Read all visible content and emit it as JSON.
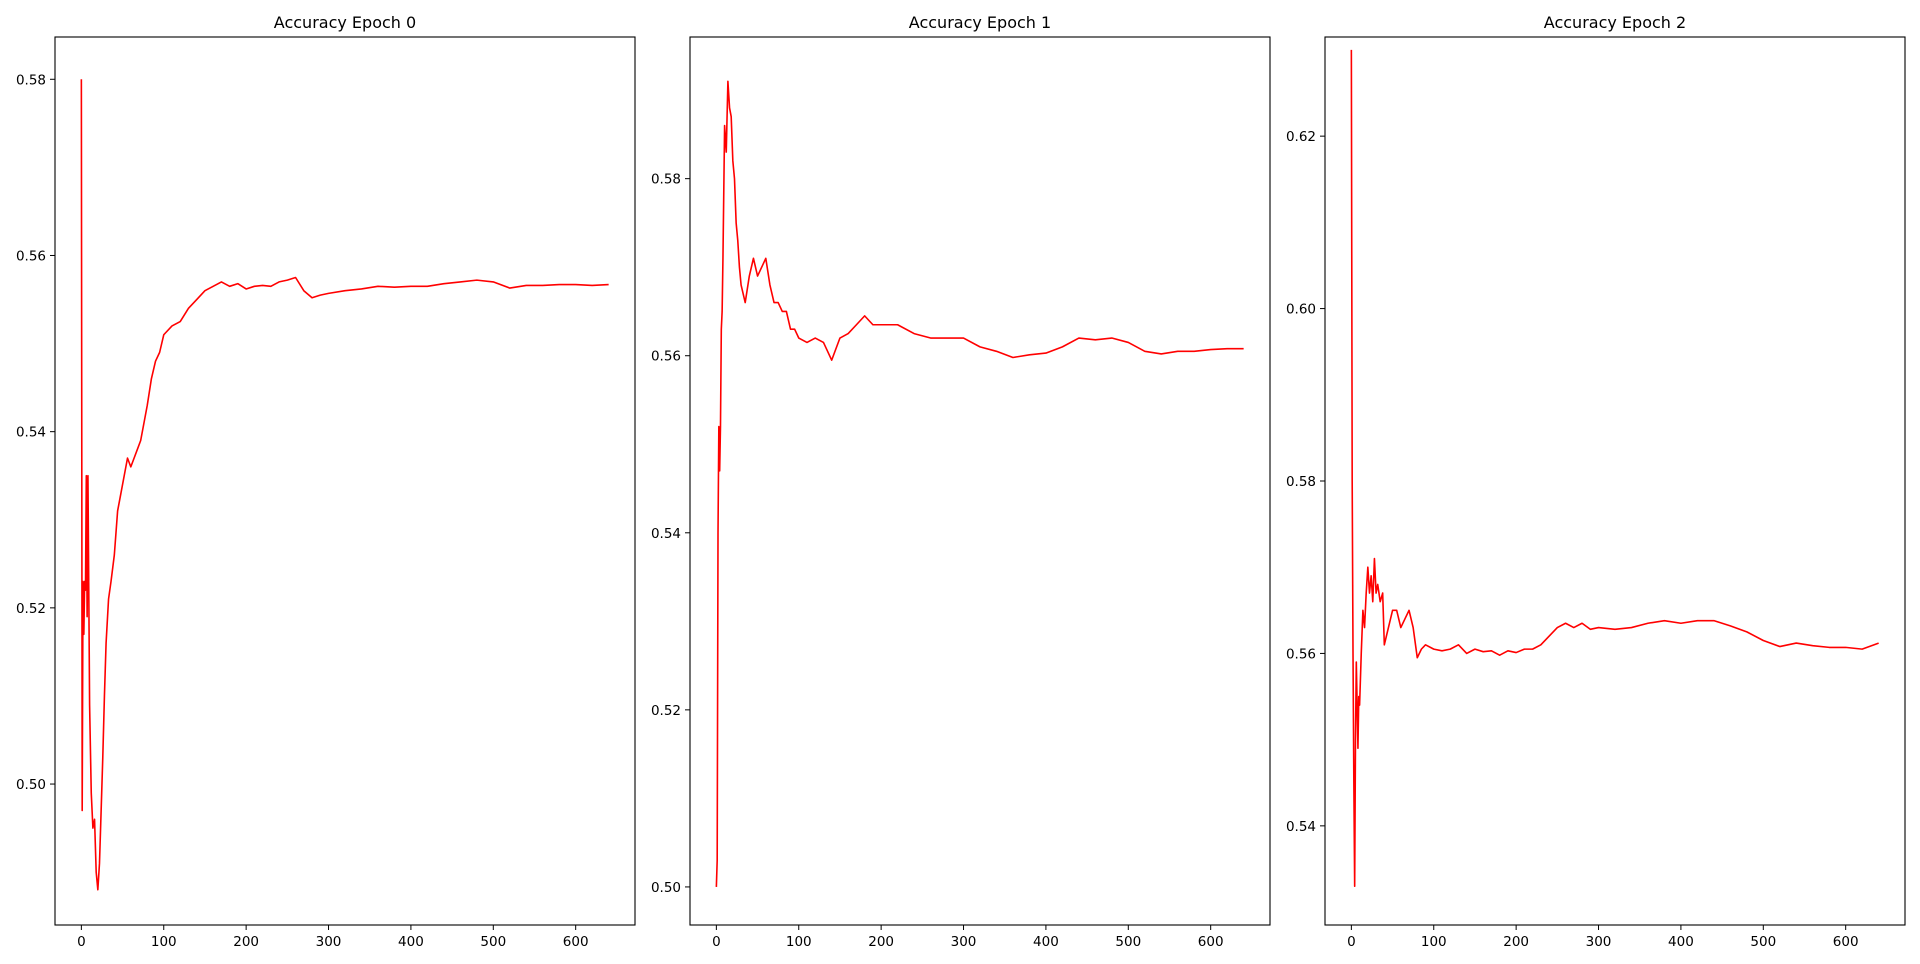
{
  "colors": {
    "line": "#ff0000",
    "axes": "#000000",
    "background": "#ffffff"
  },
  "chart_data": [
    {
      "type": "line",
      "title": "Accuracy Epoch 0",
      "xlabel": "",
      "ylabel": "",
      "xlim": [
        -32,
        672
      ],
      "ylim": [
        0.484,
        0.5848
      ],
      "grid": false,
      "xticks": [
        "0",
        "100",
        "200",
        "300",
        "400",
        "500",
        "600"
      ],
      "yticks": [
        "0.50",
        "0.52",
        "0.54",
        "0.56",
        "0.58"
      ],
      "series": [
        {
          "color": "#ff0000",
          "x": [
            0,
            1,
            2,
            3,
            4,
            5,
            6,
            7,
            8,
            10,
            12,
            14,
            16,
            18,
            20,
            22,
            24,
            26,
            28,
            30,
            33,
            36,
            40,
            44,
            48,
            52,
            56,
            60,
            64,
            68,
            72,
            76,
            80,
            85,
            90,
            95,
            100,
            110,
            120,
            130,
            140,
            150,
            160,
            170,
            180,
            190,
            200,
            210,
            220,
            230,
            240,
            250,
            260,
            270,
            280,
            290,
            300,
            320,
            340,
            360,
            380,
            400,
            420,
            440,
            460,
            480,
            500,
            520,
            540,
            560,
            580,
            600,
            620,
            640
          ],
          "y": [
            0.58,
            0.497,
            0.523,
            0.517,
            0.523,
            0.522,
            0.535,
            0.519,
            0.535,
            0.509,
            0.499,
            0.495,
            0.496,
            0.49,
            0.488,
            0.491,
            0.497,
            0.503,
            0.51,
            0.516,
            0.521,
            0.523,
            0.526,
            0.531,
            0.533,
            0.535,
            0.537,
            0.536,
            0.537,
            0.538,
            0.539,
            0.541,
            0.543,
            0.546,
            0.548,
            0.549,
            0.551,
            0.552,
            0.5525,
            0.554,
            0.555,
            0.556,
            0.5565,
            0.557,
            0.5565,
            0.5568,
            0.5562,
            0.5565,
            0.5566,
            0.5565,
            0.557,
            0.5572,
            0.5575,
            0.556,
            0.5552,
            0.5555,
            0.5557,
            0.556,
            0.5562,
            0.5565,
            0.5564,
            0.5565,
            0.5565,
            0.5568,
            0.557,
            0.5572,
            0.557,
            0.5563,
            0.5566,
            0.5566,
            0.5567,
            0.5567,
            0.5566,
            0.5567
          ]
        }
      ]
    },
    {
      "type": "line",
      "title": "Accuracy Epoch 1",
      "xlabel": "",
      "ylabel": "",
      "xlim": [
        -32,
        672
      ],
      "ylim": [
        0.4957,
        0.596
      ],
      "grid": false,
      "xticks": [
        "0",
        "100",
        "200",
        "300",
        "400",
        "500",
        "600"
      ],
      "yticks": [
        "0.50",
        "0.52",
        "0.54",
        "0.56",
        "0.58"
      ],
      "series": [
        {
          "color": "#ff0000",
          "x": [
            0,
            1,
            2,
            3,
            4,
            5,
            6,
            7,
            8,
            10,
            12,
            14,
            16,
            18,
            20,
            22,
            24,
            26,
            28,
            30,
            35,
            40,
            45,
            50,
            55,
            60,
            65,
            70,
            75,
            80,
            85,
            90,
            95,
            100,
            110,
            120,
            130,
            140,
            150,
            160,
            170,
            180,
            190,
            200,
            220,
            240,
            260,
            280,
            300,
            320,
            340,
            360,
            380,
            400,
            420,
            440,
            460,
            480,
            500,
            520,
            540,
            560,
            580,
            600,
            620,
            640
          ],
          "y": [
            0.5,
            0.503,
            0.54,
            0.552,
            0.547,
            0.552,
            0.563,
            0.565,
            0.571,
            0.586,
            0.583,
            0.591,
            0.588,
            0.587,
            0.582,
            0.58,
            0.575,
            0.573,
            0.57,
            0.568,
            0.566,
            0.569,
            0.571,
            0.569,
            0.57,
            0.571,
            0.568,
            0.566,
            0.566,
            0.565,
            0.565,
            0.563,
            0.563,
            0.562,
            0.5615,
            0.562,
            0.5615,
            0.5595,
            0.562,
            0.5625,
            0.5635,
            0.5645,
            0.5635,
            0.5635,
            0.5635,
            0.5625,
            0.562,
            0.562,
            0.562,
            0.561,
            0.5605,
            0.5598,
            0.5601,
            0.5603,
            0.561,
            0.562,
            0.5618,
            0.562,
            0.5615,
            0.5605,
            0.5602,
            0.5605,
            0.5605,
            0.5607,
            0.5608,
            0.5608
          ]
        }
      ]
    },
    {
      "type": "line",
      "title": "Accuracy Epoch 2",
      "xlabel": "",
      "ylabel": "",
      "xlim": [
        -32,
        672
      ],
      "ylim": [
        0.5285,
        0.6315
      ],
      "grid": false,
      "xticks": [
        "0",
        "100",
        "200",
        "300",
        "400",
        "500",
        "600"
      ],
      "yticks": [
        "0.54",
        "0.56",
        "0.58",
        "0.60",
        "0.62"
      ],
      "series": [
        {
          "color": "#ff0000",
          "x": [
            0,
            1,
            2,
            3,
            4,
            5,
            6,
            7,
            8,
            9,
            10,
            12,
            14,
            16,
            18,
            20,
            22,
            24,
            26,
            28,
            30,
            32,
            35,
            38,
            40,
            45,
            50,
            55,
            60,
            65,
            70,
            75,
            80,
            85,
            90,
            100,
            110,
            120,
            130,
            140,
            150,
            160,
            170,
            180,
            190,
            200,
            210,
            220,
            230,
            240,
            250,
            260,
            270,
            280,
            290,
            300,
            320,
            340,
            360,
            380,
            400,
            420,
            440,
            460,
            480,
            500,
            520,
            540,
            560,
            580,
            600,
            620,
            640
          ],
          "y": [
            0.63,
            0.58,
            0.56,
            0.545,
            0.533,
            0.55,
            0.559,
            0.554,
            0.549,
            0.555,
            0.554,
            0.56,
            0.565,
            0.563,
            0.567,
            0.57,
            0.567,
            0.569,
            0.566,
            0.571,
            0.567,
            0.568,
            0.566,
            0.567,
            0.561,
            0.563,
            0.565,
            0.565,
            0.563,
            0.564,
            0.565,
            0.563,
            0.5595,
            0.5605,
            0.561,
            0.5605,
            0.5603,
            0.5605,
            0.561,
            0.56,
            0.5605,
            0.5602,
            0.5603,
            0.5598,
            0.5603,
            0.5601,
            0.5605,
            0.5605,
            0.561,
            0.562,
            0.563,
            0.5635,
            0.563,
            0.5635,
            0.5628,
            0.563,
            0.5628,
            0.563,
            0.5635,
            0.5638,
            0.5635,
            0.5638,
            0.5638,
            0.5632,
            0.5625,
            0.5615,
            0.5608,
            0.5612,
            0.5609,
            0.5607,
            0.5607,
            0.5605,
            0.5612
          ]
        }
      ]
    }
  ]
}
